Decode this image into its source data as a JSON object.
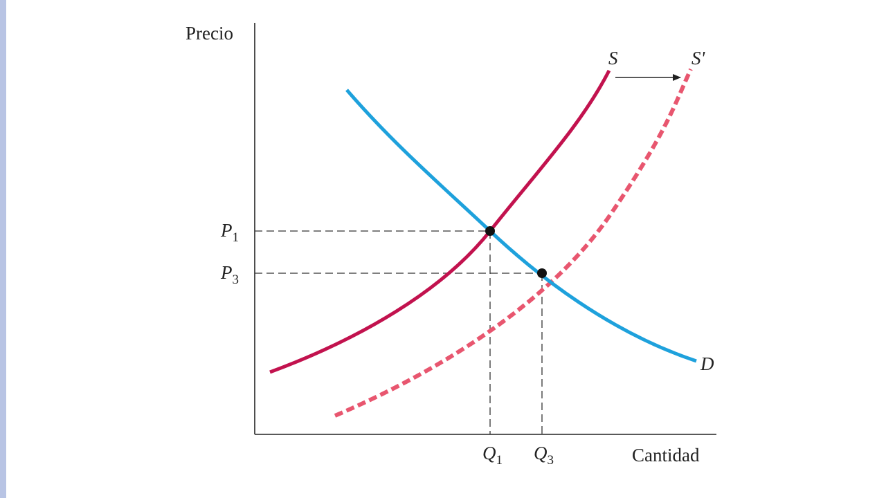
{
  "chart_data": {
    "type": "line",
    "title": "",
    "xlabel": "Cantidad",
    "ylabel": "Precio",
    "grid": false,
    "series": [
      {
        "name": "S",
        "style": "solid",
        "color": "#c2124e"
      },
      {
        "name": "S'",
        "style": "dashed",
        "color": "#e8566f"
      },
      {
        "name": "D",
        "style": "solid",
        "color": "#1ea1dc"
      }
    ],
    "equilibria": [
      {
        "price_label": "P",
        "price_sub": "1",
        "quantity_label": "Q",
        "quantity_sub": "1",
        "curves": [
          "S",
          "D"
        ]
      },
      {
        "price_label": "P",
        "price_sub": "3",
        "quantity_label": "Q",
        "quantity_sub": "3",
        "curves": [
          "S'",
          "D"
        ]
      }
    ],
    "annotations": [
      {
        "type": "arrow",
        "from": "S",
        "to": "S'",
        "meaning": "supply shift right"
      }
    ]
  }
}
